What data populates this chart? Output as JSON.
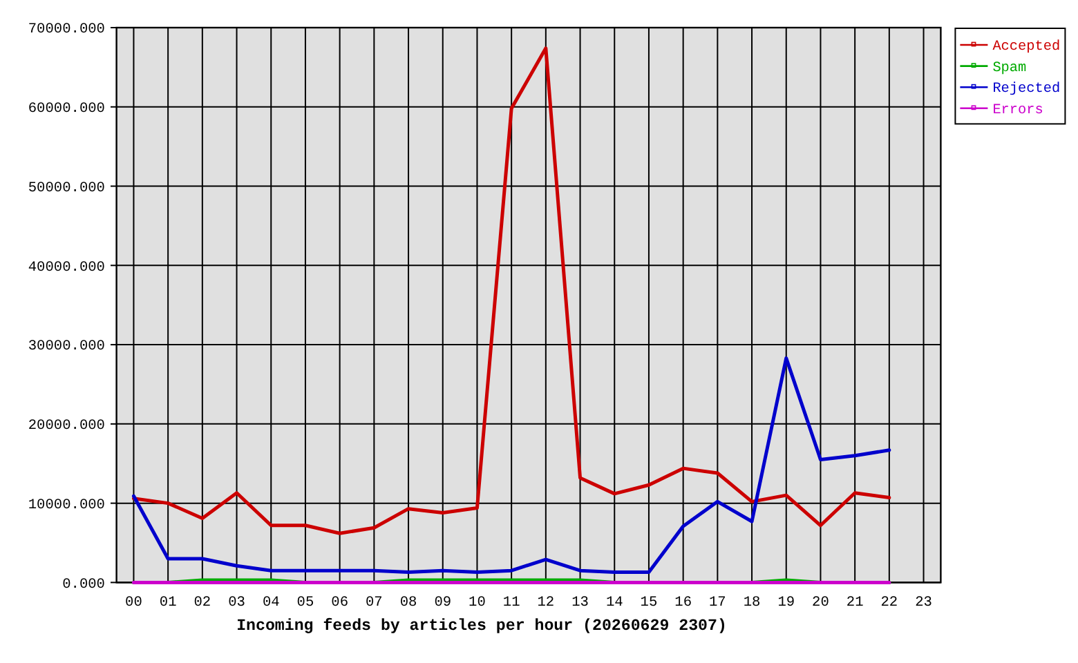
{
  "chart_data": {
    "type": "line",
    "xlabel": "Incoming feeds by articles per hour (20260629 2307)",
    "categories": [
      "00",
      "01",
      "02",
      "03",
      "04",
      "05",
      "06",
      "07",
      "08",
      "09",
      "10",
      "11",
      "12",
      "13",
      "14",
      "15",
      "16",
      "17",
      "18",
      "19",
      "20",
      "21",
      "22",
      "23"
    ],
    "series": [
      {
        "name": "Accepted",
        "color": "#cc0000",
        "values": [
          10600,
          10000,
          8100,
          11300,
          7200,
          7200,
          6200,
          6900,
          9300,
          8800,
          9400,
          59800,
          67400,
          13200,
          11200,
          12300,
          14400,
          13800,
          10200,
          11000,
          7200,
          11300,
          10700,
          null
        ]
      },
      {
        "name": "Spam",
        "color": "#00aa00",
        "values": [
          0,
          0,
          300,
          300,
          300,
          0,
          0,
          0,
          300,
          300,
          300,
          300,
          300,
          300,
          0,
          0,
          0,
          0,
          0,
          300,
          0,
          0,
          0,
          null
        ]
      },
      {
        "name": "Rejected",
        "color": "#0000cc",
        "values": [
          10900,
          3000,
          3000,
          2100,
          1500,
          1500,
          1500,
          1500,
          1300,
          1500,
          1300,
          1500,
          2900,
          1500,
          1300,
          1300,
          7100,
          10200,
          7700,
          28300,
          15500,
          16000,
          16700,
          null
        ]
      },
      {
        "name": "Errors",
        "color": "#cc00cc",
        "values": [
          0,
          0,
          0,
          0,
          0,
          0,
          0,
          0,
          0,
          0,
          0,
          0,
          0,
          0,
          0,
          0,
          0,
          0,
          0,
          0,
          0,
          0,
          0,
          null
        ]
      }
    ],
    "ylim": [
      0,
      70000
    ],
    "yticks": [
      {
        "value": 0,
        "label": "0.000"
      },
      {
        "value": 10000,
        "label": "10000.000"
      },
      {
        "value": 20000,
        "label": "20000.000"
      },
      {
        "value": 30000,
        "label": "30000.000"
      },
      {
        "value": 40000,
        "label": "40000.000"
      },
      {
        "value": 50000,
        "label": "50000.000"
      },
      {
        "value": 60000,
        "label": "60000.000"
      },
      {
        "value": 70000,
        "label": "70000.000"
      }
    ],
    "grid": true,
    "legend": "top right",
    "line_style": "solid"
  }
}
